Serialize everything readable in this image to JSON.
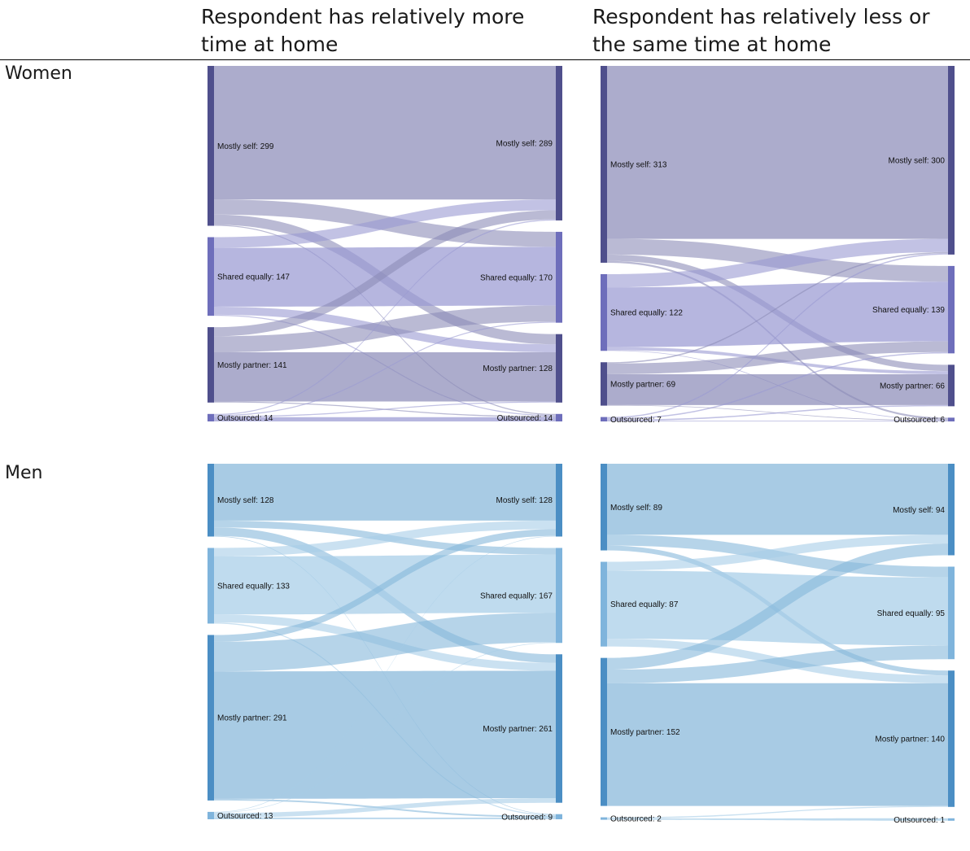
{
  "column_headers": [
    "Respondent has relatively more time at home",
    "Respondent has relatively less or the same time at home"
  ],
  "row_labels": [
    "Women",
    "Men"
  ],
  "colors": {
    "women_node": "#4f4f8c",
    "women_node_alt": "#6e6ebb",
    "women_flow_a": "#8c8cb8",
    "women_flow_b": "#9a9ad2",
    "men_node": "#4b8ec4",
    "men_node_alt": "#7fb4dc",
    "men_flow_a": "#86b7da",
    "men_flow_b": "#a6cde7"
  },
  "chart_data": [
    {
      "type": "sankey",
      "group": "Women",
      "condition": "Respondent has relatively more time at home",
      "left_nodes": [
        {
          "label": "Mostly self",
          "value": 299
        },
        {
          "label": "Shared equally",
          "value": 147
        },
        {
          "label": "Mostly partner",
          "value": 141
        },
        {
          "label": "Outsourced",
          "value": 14
        }
      ],
      "right_nodes": [
        {
          "label": "Mostly self",
          "value": 289
        },
        {
          "label": "Shared equally",
          "value": 170
        },
        {
          "label": "Mostly partner",
          "value": 128
        },
        {
          "label": "Outsourced",
          "value": 14
        }
      ],
      "flows": [
        [
          250,
          28,
          19,
          2
        ],
        [
          20,
          110,
          15,
          2
        ],
        [
          17,
          30,
          92,
          2
        ],
        [
          2,
          2,
          2,
          8
        ]
      ]
    },
    {
      "type": "sankey",
      "group": "Women",
      "condition": "Respondent has relatively less or the same time at home",
      "left_nodes": [
        {
          "label": "Mostly self",
          "value": 313
        },
        {
          "label": "Shared equally",
          "value": 122
        },
        {
          "label": "Mostly partner",
          "value": 69
        },
        {
          "label": "Outsourced",
          "value": 7
        }
      ],
      "right_nodes": [
        {
          "label": "Mostly self",
          "value": 300
        },
        {
          "label": "Shared equally",
          "value": 139
        },
        {
          "label": "Mostly partner",
          "value": 66
        },
        {
          "label": "Outsourced",
          "value": 6
        }
      ],
      "flows": [
        [
          275,
          25,
          10,
          3
        ],
        [
          21,
          95,
          5,
          1
        ],
        [
          2,
          17,
          49,
          1
        ],
        [
          2,
          2,
          2,
          1
        ]
      ]
    },
    {
      "type": "sankey",
      "group": "Men",
      "condition": "Respondent has relatively more time at home",
      "left_nodes": [
        {
          "label": "Mostly self",
          "value": 128
        },
        {
          "label": "Shared equally",
          "value": 133
        },
        {
          "label": "Mostly partner",
          "value": 291
        },
        {
          "label": "Outsourced",
          "value": 13
        }
      ],
      "right_nodes": [
        {
          "label": "Mostly self",
          "value": 128
        },
        {
          "label": "Shared equally",
          "value": 167
        },
        {
          "label": "Mostly partner",
          "value": 261
        },
        {
          "label": "Outsourced",
          "value": 9
        }
      ],
      "flows": [
        [
          100,
          12,
          15,
          1
        ],
        [
          15,
          102,
          14,
          2
        ],
        [
          12,
          52,
          224,
          3
        ],
        [
          1,
          1,
          8,
          3
        ]
      ]
    },
    {
      "type": "sankey",
      "group": "Men",
      "condition": "Respondent has relatively less or the same time at home",
      "left_nodes": [
        {
          "label": "Mostly self",
          "value": 89
        },
        {
          "label": "Shared equally",
          "value": 87
        },
        {
          "label": "Mostly partner",
          "value": 152
        },
        {
          "label": "Outsourced",
          "value": 2
        }
      ],
      "right_nodes": [
        {
          "label": "Mostly self",
          "value": 94
        },
        {
          "label": "Shared equally",
          "value": 95
        },
        {
          "label": "Mostly partner",
          "value": 140
        },
        {
          "label": "Outsourced",
          "value": 1
        }
      ],
      "flows": [
        [
          73,
          11,
          5,
          0
        ],
        [
          9,
          70,
          8,
          0
        ],
        [
          12,
          14,
          126,
          0
        ],
        [
          0,
          0,
          1,
          1
        ]
      ]
    }
  ]
}
